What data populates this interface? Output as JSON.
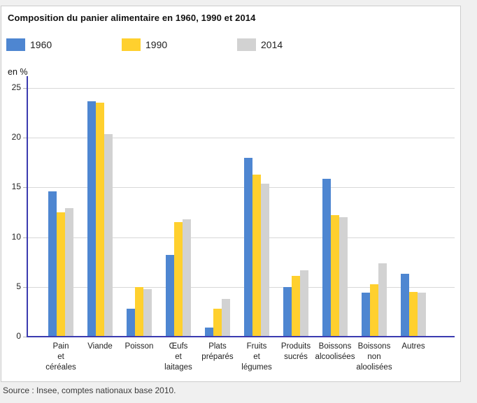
{
  "chart": {
    "title": "Composition du panier alimentaire en 1960, 1990 et 2014",
    "unit_label": "en %"
  },
  "footer": {
    "source": "Source : Insee, comptes nationaux base 2010."
  },
  "chart_data": {
    "type": "bar",
    "title": "Composition du panier alimentaire en 1960, 1990 et 2014",
    "xlabel": "",
    "ylabel": "en %",
    "ylim": [
      0,
      25
    ],
    "yticks": [
      0,
      5,
      10,
      15,
      20,
      25
    ],
    "grid": true,
    "legend_position": "top",
    "categories": [
      "Pain et céréales",
      "Viande",
      "Poisson",
      "Œufs et laitages",
      "Plats préparés",
      "Fruits et légumes",
      "Produits sucrés",
      "Boissons alcoolisées",
      "Boissons non aloolisées",
      "Autres"
    ],
    "category_lines": [
      [
        "Pain",
        "et",
        "céréales"
      ],
      [
        "Viande"
      ],
      [
        "Poisson"
      ],
      [
        "Œufs",
        "et",
        "laitages"
      ],
      [
        "Plats",
        "préparés"
      ],
      [
        "Fruits",
        "et",
        "légumes"
      ],
      [
        "Produits",
        "sucrés"
      ],
      [
        "Boissons",
        "alcoolisées"
      ],
      [
        "Boissons",
        "non",
        "aloolisées"
      ],
      [
        "Autres"
      ]
    ],
    "series": [
      {
        "name": "1960",
        "color": "#4e86d1",
        "values": [
          14.6,
          23.7,
          2.8,
          8.2,
          0.9,
          18.0,
          5.0,
          15.9,
          4.4,
          6.3
        ]
      },
      {
        "name": "1990",
        "color": "#ffd02e",
        "values": [
          12.5,
          23.5,
          5.0,
          11.5,
          2.8,
          16.3,
          6.1,
          12.2,
          5.3,
          4.5
        ]
      },
      {
        "name": "2014",
        "color": "#d2d2d2",
        "values": [
          12.9,
          20.4,
          4.8,
          11.8,
          3.8,
          15.4,
          6.7,
          12.0,
          7.4,
          4.4
        ]
      }
    ],
    "colors": {
      "axis": "#3b3bb0",
      "grid": "#d8d8d8"
    }
  }
}
